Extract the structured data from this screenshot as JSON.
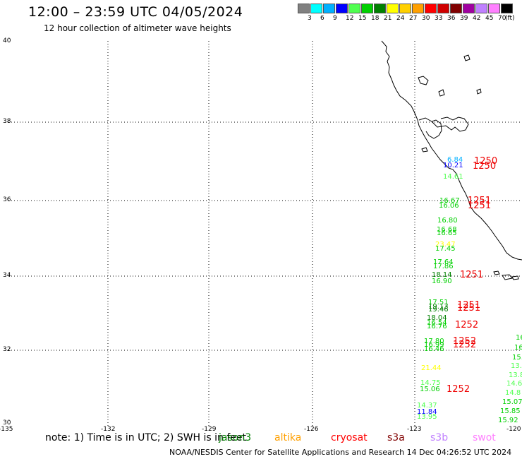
{
  "header": {
    "title": "12:00 – 23:59 UTC 04/05/2024",
    "subtitle": "12 hour collection of altimeter wave heights"
  },
  "legend": {
    "colors": [
      "#808080",
      "#00ffff",
      "#00b0ff",
      "#0000ff",
      "#50ff50",
      "#00d000",
      "#008000",
      "#ffff00",
      "#ffd000",
      "#ffa000",
      "#ff0000",
      "#d00000",
      "#800000",
      "#a000a0",
      "#c080ff",
      "#ff80ff",
      "#000000"
    ],
    "labels": [
      "3",
      "6",
      "9",
      "12",
      "15",
      "18",
      "21",
      "24",
      "27",
      "30",
      "33",
      "36",
      "39",
      "42",
      "45",
      "70"
    ],
    "unit": "(ft)"
  },
  "axes": {
    "lon_labels": [
      "-135",
      "-132",
      "-129",
      "-126",
      "-123",
      "-120"
    ],
    "lat_labels": [
      "40",
      "38",
      "36",
      "34",
      "32",
      "30"
    ]
  },
  "observations": [
    {
      "text": "6.84",
      "color": "#00b0ff"
    },
    {
      "text": "10.21",
      "color": "#0000ff"
    },
    {
      "text": "14.61",
      "color": "#50ff50"
    },
    {
      "text": "16.67",
      "color": "#00d000"
    },
    {
      "text": "16.06",
      "color": "#00d000"
    },
    {
      "text": "16.80",
      "color": "#00d000"
    },
    {
      "text": "16.68",
      "color": "#00d000"
    },
    {
      "text": "16.65",
      "color": "#00d000"
    },
    {
      "text": "23.47",
      "color": "#ffff00"
    },
    {
      "text": "17.45",
      "color": "#00d000"
    },
    {
      "text": "17.64",
      "color": "#00d000"
    },
    {
      "text": "17.86",
      "color": "#00d000"
    },
    {
      "text": "18.14",
      "color": "#008000"
    },
    {
      "text": "16.90",
      "color": "#00d000"
    },
    {
      "text": "17.51",
      "color": "#00d000"
    },
    {
      "text": "19.13",
      "color": "#008000"
    },
    {
      "text": "19.46",
      "color": "#008000"
    },
    {
      "text": "18.04",
      "color": "#008000"
    },
    {
      "text": "16.54",
      "color": "#00d000"
    },
    {
      "text": "16.76",
      "color": "#00d000"
    },
    {
      "text": "17.80",
      "color": "#00d000"
    },
    {
      "text": "16.99",
      "color": "#00d000"
    },
    {
      "text": "16.46",
      "color": "#00d000"
    },
    {
      "text": "21.44",
      "color": "#ffff00"
    },
    {
      "text": "14.75",
      "color": "#50ff50"
    },
    {
      "text": "15.06",
      "color": "#00d000"
    },
    {
      "text": "14.37",
      "color": "#50ff50"
    },
    {
      "text": "11.84",
      "color": "#0000ff"
    },
    {
      "text": "13.95",
      "color": "#50ff50"
    },
    {
      "text": "16",
      "color": "#00d000"
    },
    {
      "text": "16",
      "color": "#00d000"
    },
    {
      "text": "15.",
      "color": "#00d000"
    },
    {
      "text": "13.",
      "color": "#50ff50"
    },
    {
      "text": "13.8",
      "color": "#50ff50"
    },
    {
      "text": "14.6",
      "color": "#50ff50"
    },
    {
      "text": "14.8",
      "color": "#50ff50"
    },
    {
      "text": "15.07",
      "color": "#00d000"
    },
    {
      "text": "15.85",
      "color": "#00d000"
    },
    {
      "text": "15.92",
      "color": "#00d000"
    }
  ],
  "time_codes": [
    "1250",
    "1250",
    "1251",
    "1251",
    "1251",
    "1251",
    "1251",
    "1252",
    "1252",
    "1252",
    "1252"
  ],
  "footer": {
    "note": "note: 1) Time is in UTC; 2) SWH is in feet",
    "satellites": [
      {
        "name": "jason3",
        "color": "#008000"
      },
      {
        "name": "altika",
        "color": "#ffa000"
      },
      {
        "name": "cryosat",
        "color": "#ff0000"
      },
      {
        "name": "s3a",
        "color": "#800000"
      },
      {
        "name": "s3b",
        "color": "#c080ff"
      },
      {
        "name": "swot",
        "color": "#ff80ff"
      }
    ],
    "credit": "NOAA/NESDIS Center for Satellite Applications and Research    14 Dec 04:26:52 UTC 2024"
  }
}
